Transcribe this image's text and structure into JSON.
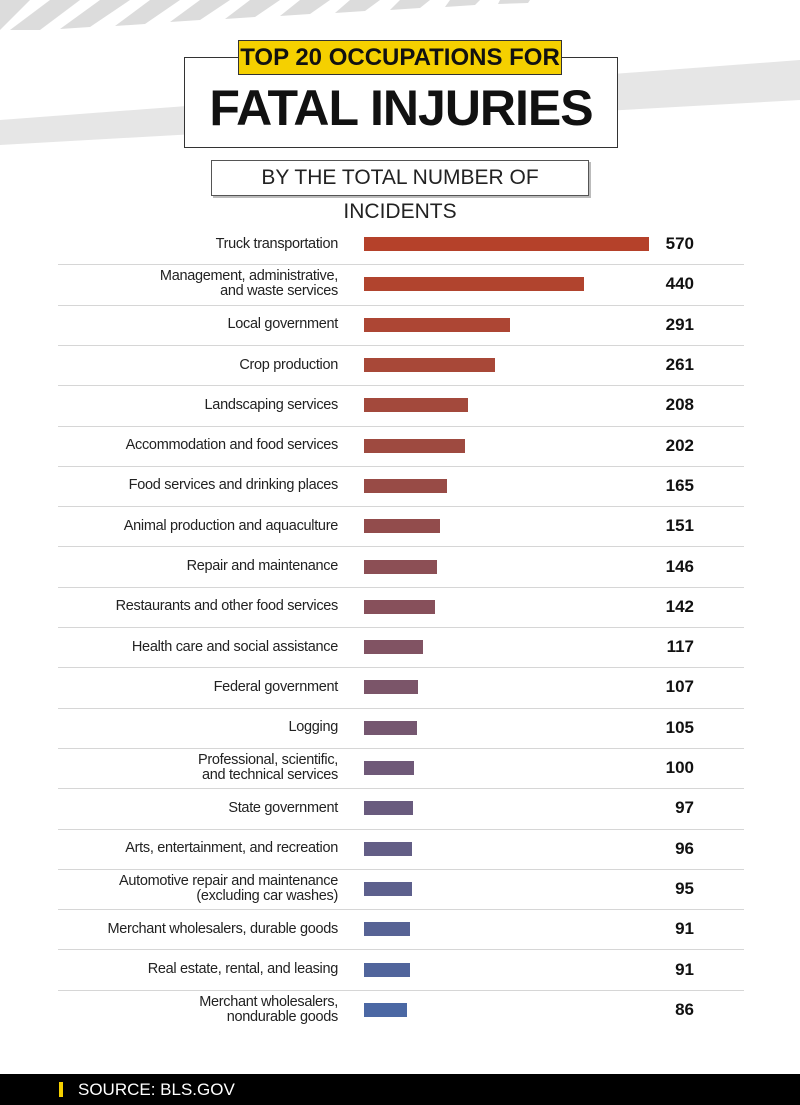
{
  "chart_data": {
    "type": "bar",
    "orientation": "horizontal",
    "title_line1": "TOP 20 OCCUPATIONS FOR",
    "title_line2": "FATAL INJURIES",
    "subtitle": "BY THE TOTAL NUMBER OF INCIDENTS",
    "source": "SOURCE: BLS.GOV",
    "categories": [
      "Truck transportation",
      "Management, administrative,\nand waste services",
      "Local government",
      "Crop production",
      "Landscaping services",
      "Accommodation and food services",
      "Food services and drinking places",
      "Animal production and aquaculture",
      "Repair and maintenance",
      "Restaurants and other food services",
      "Health care and social assistance",
      "Federal government",
      "Logging",
      "Professional, scientific,\nand technical services",
      "State government",
      "Arts, entertainment, and recreation",
      "Automotive repair and maintenance\n(excluding car washes)",
      "Merchant wholesalers, durable goods",
      "Real estate, rental, and leasing",
      "Merchant wholesalers,\nnondurable goods"
    ],
    "values": [
      570,
      440,
      291,
      261,
      208,
      202,
      165,
      151,
      146,
      142,
      117,
      107,
      105,
      100,
      97,
      96,
      95,
      91,
      91,
      86
    ],
    "colors": [
      "#b5412a",
      "#b1442e",
      "#ad4634",
      "#a84838",
      "#a3493c",
      "#9e4a40",
      "#984b46",
      "#924c4c",
      "#8c4f55",
      "#87505b",
      "#815363",
      "#7b5569",
      "#755770",
      "#6f5978",
      "#695b7e",
      "#635e86",
      "#5d608d",
      "#576395",
      "#51659c",
      "#4b68a4"
    ]
  }
}
